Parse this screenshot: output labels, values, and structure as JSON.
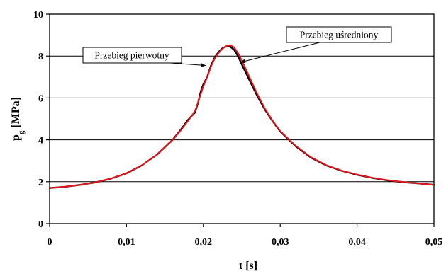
{
  "chart_data": {
    "type": "line",
    "xlabel": "t [s]",
    "ylabel_main": "p",
    "ylabel_sub": "g",
    "ylabel_unit": " [MPa]",
    "xlim": [
      0,
      0.05
    ],
    "ylim": [
      0,
      10
    ],
    "x_ticks": [
      {
        "value": 0,
        "label": "0"
      },
      {
        "value": 0.01,
        "label": "0,01"
      },
      {
        "value": 0.02,
        "label": "0,02"
      },
      {
        "value": 0.03,
        "label": "0,03"
      },
      {
        "value": 0.04,
        "label": "0,04"
      },
      {
        "value": 0.05,
        "label": "0,05"
      }
    ],
    "y_ticks": [
      {
        "value": 0,
        "label": "0"
      },
      {
        "value": 2,
        "label": "2"
      },
      {
        "value": 4,
        "label": "4"
      },
      {
        "value": 6,
        "label": "6"
      },
      {
        "value": 8,
        "label": "8"
      },
      {
        "value": 10,
        "label": "10"
      }
    ],
    "grid": "horizontal",
    "series": [
      {
        "color": "#000000",
        "x": [
          0,
          0.002,
          0.004,
          0.006,
          0.008,
          0.01,
          0.012,
          0.014,
          0.016,
          0.017,
          0.018,
          0.0185,
          0.0189,
          0.0193,
          0.0197,
          0.02,
          0.0205,
          0.021,
          0.0215,
          0.022,
          0.0225,
          0.023,
          0.0235,
          0.024,
          0.0245,
          0.025,
          0.026,
          0.027,
          0.028,
          0.029,
          0.03,
          0.032,
          0.034,
          0.036,
          0.038,
          0.04,
          0.042,
          0.044,
          0.046,
          0.048,
          0.05
        ],
        "y": [
          1.7,
          1.76,
          1.85,
          1.97,
          2.15,
          2.4,
          2.78,
          3.3,
          4.0,
          4.45,
          4.95,
          5.15,
          5.3,
          5.75,
          6.35,
          6.65,
          7.0,
          7.55,
          7.95,
          8.2,
          8.38,
          8.46,
          8.45,
          8.3,
          8.0,
          7.6,
          6.85,
          6.1,
          5.45,
          4.9,
          4.4,
          3.7,
          3.15,
          2.78,
          2.52,
          2.33,
          2.18,
          2.06,
          1.98,
          1.92,
          1.85
        ]
      },
      {
        "color": "#e8141c",
        "x": [
          0,
          0.002,
          0.004,
          0.006,
          0.008,
          0.01,
          0.012,
          0.014,
          0.016,
          0.017,
          0.018,
          0.0185,
          0.019,
          0.0195,
          0.02,
          0.0205,
          0.021,
          0.0215,
          0.022,
          0.0225,
          0.023,
          0.0235,
          0.024,
          0.0245,
          0.025,
          0.026,
          0.027,
          0.028,
          0.029,
          0.03,
          0.032,
          0.034,
          0.036,
          0.038,
          0.04,
          0.042,
          0.044,
          0.046,
          0.048,
          0.05
        ],
        "y": [
          1.7,
          1.76,
          1.85,
          1.97,
          2.15,
          2.4,
          2.78,
          3.3,
          4.0,
          4.42,
          4.9,
          5.15,
          5.45,
          6.0,
          6.55,
          7.0,
          7.5,
          7.9,
          8.15,
          8.35,
          8.48,
          8.52,
          8.42,
          8.15,
          7.8,
          7.0,
          6.2,
          5.5,
          4.92,
          4.42,
          3.72,
          3.17,
          2.79,
          2.53,
          2.34,
          2.19,
          2.07,
          1.99,
          1.92,
          1.85
        ]
      }
    ],
    "annotations": [
      {
        "text": "Przebieg pierwotny",
        "x_data": 0.0203,
        "y_data": 7.55
      },
      {
        "text": "Przebieg uśredniony",
        "x_data": 0.0248,
        "y_data": 7.7
      }
    ]
  }
}
